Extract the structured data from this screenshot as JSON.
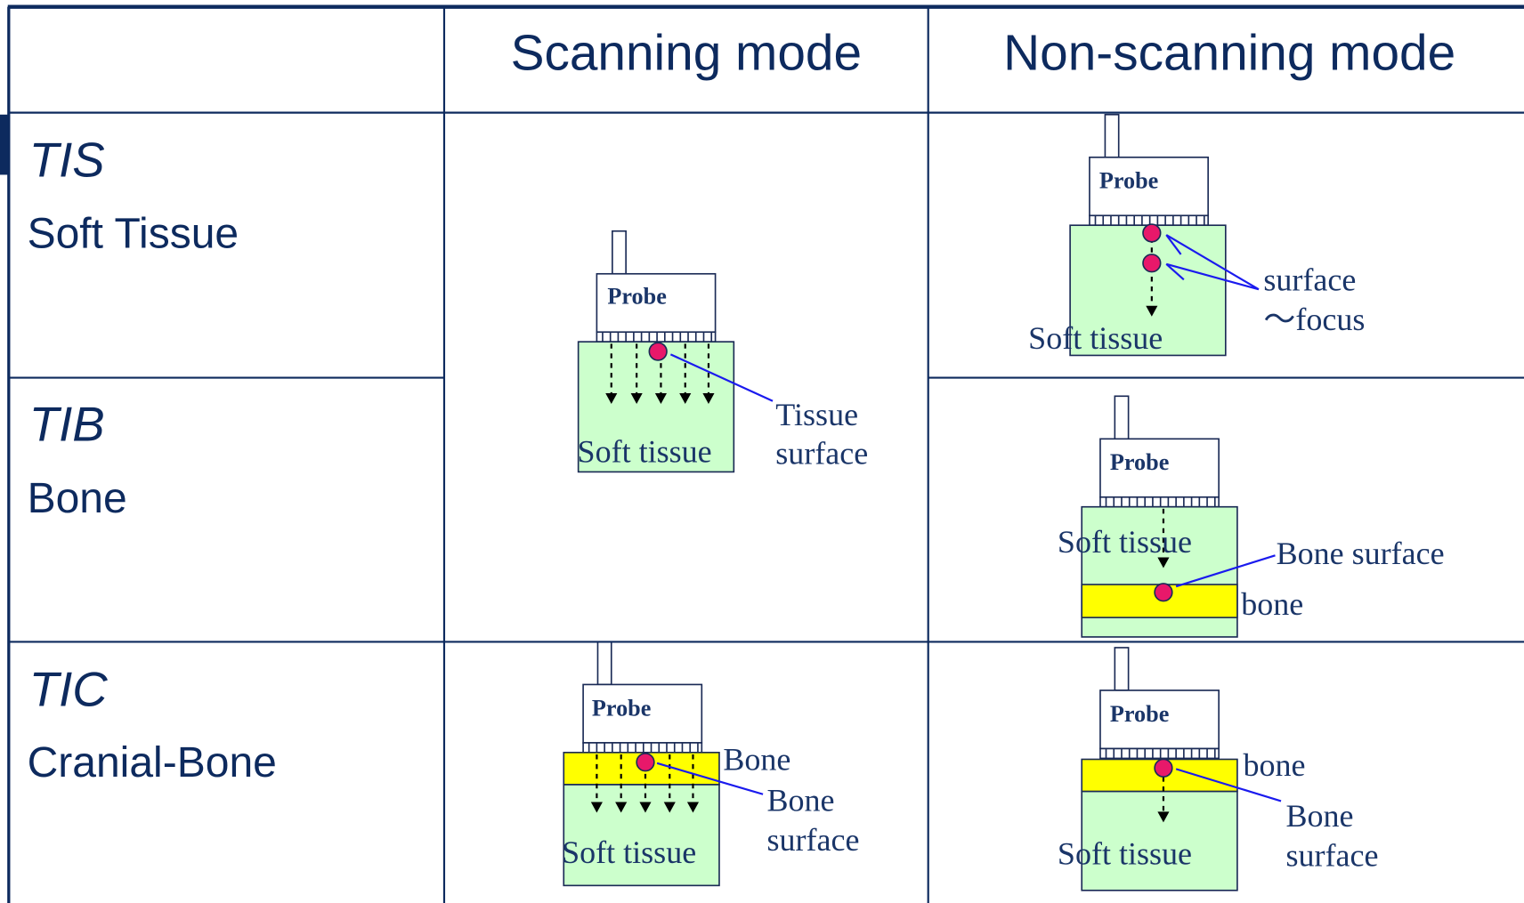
{
  "header": {
    "columns": [
      "Scanning mode",
      "Non-scanning mode"
    ]
  },
  "rows": [
    {
      "index": "TIS",
      "name": "Soft Tissue"
    },
    {
      "index": "TIB",
      "name": "Bone"
    },
    {
      "index": "TIC",
      "name": "Cranial-Bone"
    }
  ],
  "diagrams": {
    "scan_tis": {
      "probe": "Probe",
      "tissue": "Soft tissue",
      "pointer": [
        "Tissue",
        "surface"
      ]
    },
    "nonscan_tis": {
      "probe": "Probe",
      "tissue": "Soft tissue",
      "pointer": [
        "surface",
        "～focus"
      ]
    },
    "nonscan_tib": {
      "probe": "Probe",
      "tissue": "Soft tissue",
      "pointer": [
        "Bone surface"
      ],
      "layer": "bone"
    },
    "scan_tic": {
      "probe": "Probe",
      "layer": "Bone",
      "pointer": [
        "Bone",
        "surface"
      ],
      "tissue": "Soft tissue"
    },
    "nonscan_tic": {
      "probe": "Probe",
      "layer": "bone",
      "pointer": [
        "Bone",
        "surface"
      ],
      "tissue": "Soft tissue"
    }
  }
}
